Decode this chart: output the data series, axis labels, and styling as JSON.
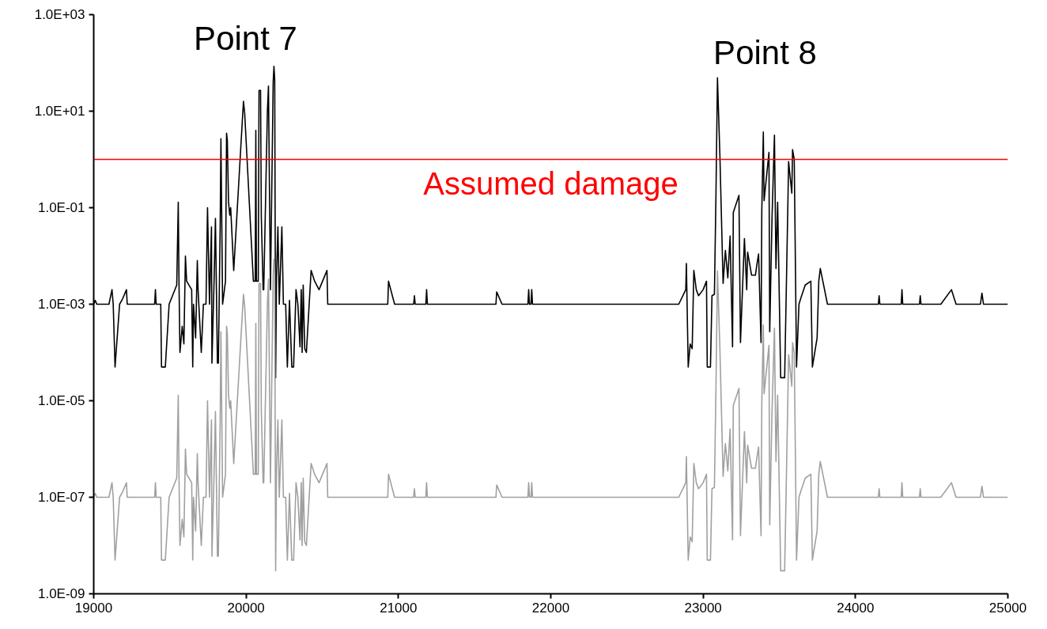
{
  "chart_data": {
    "type": "line",
    "log": "y",
    "grid": false,
    "marker": "none",
    "line_style": "solid",
    "xlim": [
      19000,
      25000
    ],
    "xticks": [
      19000,
      20000,
      21000,
      22000,
      23000,
      24000,
      25000
    ],
    "ylim": [
      1e-09,
      1000
    ],
    "yticks": [
      {
        "value": 1e-09,
        "label": "1.0E-09"
      },
      {
        "value": 1e-07,
        "label": "1.0E-07"
      },
      {
        "value": 1e-05,
        "label": "1.0E-05"
      },
      {
        "value": 0.001,
        "label": "1.0E-03"
      },
      {
        "value": 0.1,
        "label": "1.0E-01"
      },
      {
        "value": 10,
        "label": "1.0E+01"
      },
      {
        "value": 1000,
        "label": "1.0E+03"
      }
    ],
    "ref_lines": [
      {
        "axis": "y",
        "value": 1,
        "label": "Assumed damage",
        "color": "#ff0000",
        "line_style": "solid"
      }
    ],
    "annotations": [
      "Point 7",
      "Point 8"
    ],
    "x": [
      19000,
      19010,
      19020,
      19100,
      19120,
      19128,
      19140,
      19170,
      19190,
      19215,
      19220,
      19400,
      19405,
      19410,
      19440,
      19445,
      19470,
      19495,
      19545,
      19555,
      19560,
      19566,
      19581,
      19592,
      19602,
      19610,
      19643,
      19650,
      19655,
      19669,
      19680,
      19685,
      19706,
      19720,
      19737,
      19747,
      19760,
      19773,
      19776,
      19790,
      19799,
      19812,
      19818,
      19830,
      19835,
      19846,
      19865,
      19872,
      19877,
      19885,
      19893,
      19899,
      19919,
      19975,
      19983,
      19991,
      20048,
      20060,
      20064,
      20068,
      20080,
      20085,
      20095,
      20100,
      20112,
      20116,
      20140,
      20147,
      20160,
      20178,
      20183,
      20188,
      20194,
      20200,
      20209,
      20218,
      20235,
      20245,
      20260,
      20271,
      20285,
      20300,
      20312,
      20328,
      20340,
      20354,
      20362,
      20368,
      20375,
      20385,
      20396,
      20427,
      20450,
      20479,
      20531,
      20536,
      20680,
      20690,
      20930,
      20935,
      20960,
      20975,
      21100,
      21105,
      21110,
      21180,
      21185,
      21190,
      21640,
      21645,
      21680,
      21850,
      21855,
      21860,
      21870,
      21875,
      21880,
      22840,
      22886,
      22890,
      22902,
      22915,
      22928,
      22939,
      22955,
      22970,
      23000,
      23022,
      23027,
      23048,
      23058,
      23074,
      23084,
      23094,
      23110,
      23131,
      23146,
      23162,
      23177,
      23193,
      23198,
      23235,
      23245,
      23271,
      23286,
      23292,
      23318,
      23343,
      23354,
      23364,
      23380,
      23385,
      23395,
      23400,
      23432,
      23437,
      23452,
      23468,
      23478,
      23489,
      23509,
      23535,
      23556,
      23561,
      23582,
      23587,
      23598,
      23613,
      23629,
      23640,
      23670,
      23707,
      23717,
      23748,
      23759,
      23769,
      23816,
      24150,
      24155,
      24160,
      24300,
      24305,
      24310,
      24420,
      24425,
      24430,
      24560,
      24630,
      24660,
      24820,
      24830,
      24840,
      25000
    ],
    "series": [
      {
        "color": "#000000",
        "values": [
          0.001,
          0.0012,
          0.001,
          0.001,
          0.002,
          0.001,
          5e-05,
          0.001,
          0.0013,
          0.002,
          0.001,
          0.001,
          0.002,
          0.001,
          0.001,
          5e-05,
          5e-05,
          0.001,
          0.0025,
          0.13,
          0.0025,
          0.0001,
          0.00035,
          0.00015,
          0.01,
          0.003,
          0.002,
          5e-05,
          0.001,
          0.0002,
          0.008,
          0.002,
          0.0001,
          0.001,
          0.001,
          0.1,
          0.001,
          0.04,
          6e-05,
          0.003,
          0.06,
          6e-05,
          6e-05,
          0.04,
          2.7,
          0.001,
          0.003,
          3.5,
          2.5,
          0.13,
          0.07,
          0.1,
          0.005,
          6,
          16,
          9,
          0.003,
          0.003,
          4,
          0.003,
          0.003,
          27,
          27,
          0.066,
          0.002,
          0.002,
          10,
          33,
          0.002,
          40,
          85,
          45,
          3e-05,
          0.004,
          0.04,
          0.001,
          0.04,
          0.001,
          0.001,
          5e-05,
          0.0012,
          5e-05,
          5e-05,
          0.002,
          0.001,
          0.00013,
          0.002,
          0.0001,
          0.0025,
          0.00012,
          0.0001,
          0.005,
          0.003,
          0.002,
          0.005,
          0.001,
          0.001,
          0.001,
          0.001,
          0.003,
          0.0015,
          0.001,
          0.001,
          0.0015,
          0.001,
          0.001,
          0.002,
          0.001,
          0.001,
          0.0018,
          0.001,
          0.001,
          0.002,
          0.001,
          0.001,
          0.002,
          0.001,
          0.001,
          0.002,
          0.007,
          5e-05,
          0.00015,
          0.00012,
          0.005,
          0.002,
          0.0015,
          0.002,
          0.003,
          5e-05,
          5e-05,
          0.0015,
          0.0016,
          0.17,
          49,
          1.2,
          0.0027,
          0.013,
          0.0035,
          0.026,
          0.00013,
          0.08,
          0.18,
          0.00016,
          0.023,
          0.002,
          0.012,
          0.004,
          0.004,
          0.007,
          0.011,
          0.00016,
          0.085,
          3.7,
          0.14,
          1.4,
          0.00027,
          0.06,
          3.2,
          0.0055,
          0.13,
          3e-05,
          3e-05,
          0.11,
          0.9,
          0.2,
          1.6,
          1.0,
          5e-05,
          0.001,
          0.0013,
          0.0025,
          0.003,
          5e-05,
          0.0002,
          0.003,
          0.0055,
          0.001,
          0.001,
          0.0015,
          0.001,
          0.001,
          0.002,
          0.001,
          0.001,
          0.0015,
          0.001,
          0.001,
          0.002,
          0.001,
          0.001,
          0.0017,
          0.001,
          0.001
        ]
      },
      {
        "color": "#a0a0a0",
        "values": [
          1e-07,
          1.2e-07,
          1e-07,
          1e-07,
          2e-07,
          1e-07,
          5e-09,
          1e-07,
          1.3e-07,
          2e-07,
          1e-07,
          1e-07,
          2e-07,
          1e-07,
          1e-07,
          5e-09,
          5e-09,
          1e-07,
          2.5e-07,
          1.3e-05,
          2.5e-07,
          1e-08,
          3.5e-08,
          1.5e-08,
          1e-06,
          3e-07,
          2e-07,
          5e-09,
          1e-07,
          2e-08,
          8e-07,
          2e-07,
          1e-08,
          1e-07,
          1e-07,
          1e-05,
          1e-07,
          4e-06,
          6e-09,
          3e-07,
          6e-06,
          6e-09,
          6e-09,
          4e-06,
          0.00027,
          1e-07,
          3e-07,
          0.00035,
          0.00025,
          1.3e-05,
          7e-06,
          1e-05,
          5e-07,
          0.0006,
          0.0016,
          0.0009,
          3e-07,
          3e-07,
          0.0004,
          3e-07,
          3e-07,
          0.0027,
          0.0027,
          6.6e-06,
          2e-07,
          2e-07,
          0.001,
          0.0033,
          2e-07,
          0.004,
          0.0085,
          0.0045,
          3e-09,
          4e-07,
          4e-06,
          1e-07,
          4e-06,
          1e-07,
          1e-07,
          5e-09,
          1.2e-07,
          5e-09,
          5e-09,
          2e-07,
          1e-07,
          1.3e-08,
          2e-07,
          1e-08,
          2.5e-07,
          1.2e-08,
          1e-08,
          5e-07,
          3e-07,
          2e-07,
          5e-07,
          1e-07,
          1e-07,
          1e-07,
          1e-07,
          3e-07,
          1.5e-07,
          1e-07,
          1e-07,
          1.5e-07,
          1e-07,
          1e-07,
          2e-07,
          1e-07,
          1e-07,
          1.8e-07,
          1e-07,
          1e-07,
          2e-07,
          1e-07,
          1e-07,
          2e-07,
          1e-07,
          1e-07,
          2e-07,
          7e-07,
          5e-09,
          1.5e-08,
          1.2e-08,
          5e-07,
          2e-07,
          1.5e-07,
          2e-07,
          3e-07,
          5e-09,
          5e-09,
          1.5e-07,
          1.6e-07,
          1.7e-05,
          0.0049,
          0.00012,
          2.7e-07,
          1.3e-06,
          3.5e-07,
          2.6e-06,
          1.3e-08,
          8e-06,
          1.8e-05,
          1.6e-08,
          2.3e-06,
          2e-07,
          1.2e-06,
          4e-07,
          4e-07,
          7e-07,
          1.1e-06,
          1.6e-08,
          8.5e-06,
          0.00037,
          1.4e-05,
          0.00014,
          2.7e-08,
          6e-06,
          0.00032,
          5.5e-07,
          1.3e-05,
          3e-09,
          3e-09,
          1.1e-05,
          9e-05,
          2e-05,
          0.00016,
          0.0001,
          5e-09,
          1e-07,
          1.3e-07,
          2.5e-07,
          3e-07,
          5e-09,
          2e-08,
          3e-07,
          5.5e-07,
          1e-07,
          1e-07,
          1.5e-07,
          1e-07,
          1e-07,
          2e-07,
          1e-07,
          1e-07,
          1.5e-07,
          1e-07,
          1e-07,
          2e-07,
          1e-07,
          1e-07,
          1.7e-07,
          1e-07,
          1e-07
        ]
      }
    ]
  }
}
